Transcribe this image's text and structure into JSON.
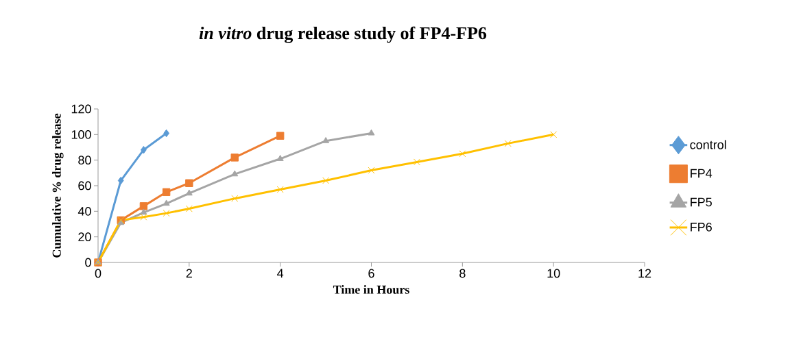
{
  "chart_data": {
    "type": "line",
    "title": "*in vitro* drug release study of FP4-FP6",
    "xlabel": "Time in Hours",
    "ylabel": "Cumulative % drug release",
    "xlim": [
      0,
      12
    ],
    "xticks": [
      0,
      2,
      4,
      6,
      8,
      10,
      12
    ],
    "ylim": [
      0,
      120
    ],
    "yticks": [
      0,
      20,
      40,
      60,
      80,
      100,
      120
    ],
    "grid": false,
    "legend": "right",
    "series": [
      {
        "name": "control",
        "color": "#5b9bd5",
        "marker": "diamond",
        "x": [
          0,
          0.5,
          1,
          1.5
        ],
        "values": [
          0,
          64,
          88,
          101
        ]
      },
      {
        "name": "FP4",
        "color": "#ed7d31",
        "marker": "square",
        "x": [
          0,
          0.5,
          1,
          1.5,
          2,
          3,
          4
        ],
        "values": [
          0,
          33,
          44,
          55,
          62,
          82,
          99
        ]
      },
      {
        "name": "FP5",
        "color": "#a5a5a5",
        "marker": "triangle",
        "x": [
          0,
          0.5,
          1,
          1.5,
          2,
          3,
          4,
          5,
          6
        ],
        "values": [
          0,
          31,
          39,
          46,
          54,
          69,
          81,
          95,
          101
        ]
      },
      {
        "name": "FP6",
        "color": "#ffc000",
        "marker": "cross",
        "x": [
          0,
          0.5,
          1,
          1.5,
          2,
          3,
          4,
          5,
          6,
          7,
          8,
          9,
          10
        ],
        "values": [
          0,
          33,
          35.5,
          38.5,
          42,
          50,
          57,
          64,
          72,
          78.5,
          85,
          93,
          100
        ]
      }
    ]
  }
}
